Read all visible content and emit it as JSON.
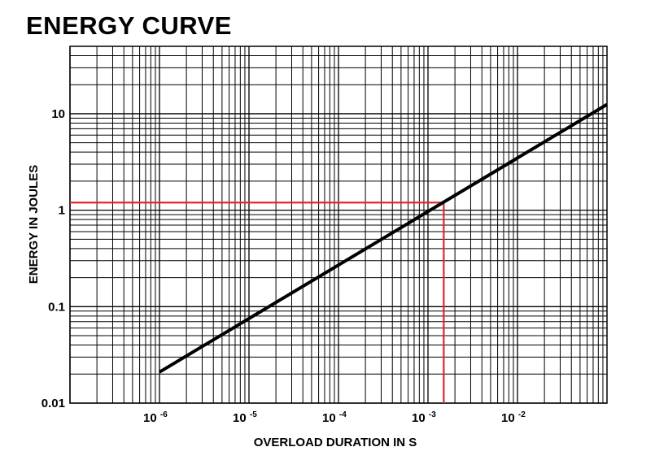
{
  "title": "ENERGY CURVE",
  "chart_data": {
    "type": "line",
    "title": "ENERGY CURVE",
    "xlabel": "OVERLOAD DURATION IN S",
    "ylabel": "ENERGY IN JOULES",
    "x_scale": "log",
    "y_scale": "log",
    "xlim": [
      1e-07,
      0.1
    ],
    "ylim": [
      0.01,
      50
    ],
    "grid": true,
    "x_ticks": [
      {
        "base": "10",
        "exp": "-6",
        "value": 1e-06
      },
      {
        "base": "10",
        "exp": "-5",
        "value": 1e-05
      },
      {
        "base": "10",
        "exp": "-4",
        "value": 0.0001
      },
      {
        "base": "10",
        "exp": "-3",
        "value": 0.001
      },
      {
        "base": "10",
        "exp": "-2",
        "value": 0.01
      }
    ],
    "y_ticks": [
      {
        "label": "10",
        "value": 10
      },
      {
        "label": "1",
        "value": 1
      },
      {
        "label": "0.1",
        "value": 0.1
      },
      {
        "label": "0.01",
        "value": 0.01
      }
    ],
    "series": [
      {
        "color": "#000000",
        "x": [
          1e-06,
          0.11
        ],
        "y": [
          0.021,
          12.5
        ]
      }
    ],
    "annotations": [
      {
        "type": "reference",
        "color": "#e3262b",
        "x": 0.0015,
        "y": 1.2
      }
    ]
  }
}
